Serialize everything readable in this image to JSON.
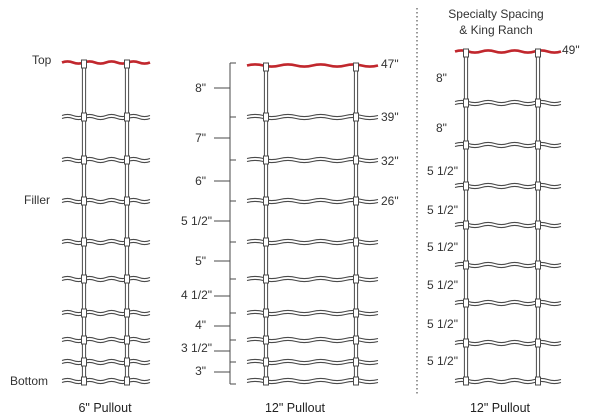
{
  "colors": {
    "wire": "#4a4a4a",
    "accent": "#c1272d",
    "divider": "#555555",
    "text": "#333333"
  },
  "left_panel": {
    "top_label": "Top",
    "filler_label": "Filler",
    "bottom_label": "Bottom",
    "caption": "6\" Pullout"
  },
  "middle_panel": {
    "spacing_labels": [
      "8\"",
      "7\"",
      "6\"",
      "5 1/2\"",
      "5\"",
      "4 1/2\"",
      "4\"",
      "3 1/2\"",
      "3\""
    ],
    "height_labels": [
      "47\"",
      "39\"",
      "32\"",
      "26\""
    ],
    "caption": "12\" Pullout"
  },
  "right_panel": {
    "title_line1": "Specialty Spacing",
    "title_line2": "& King Ranch",
    "height_label": "49\"",
    "spacing_labels": [
      "8\"",
      "8\"",
      "5 1/2\"",
      "5 1/2\"",
      "5 1/2\"",
      "5 1/2\"",
      "5 1/2\"",
      "5 1/2\""
    ],
    "caption": "12\" Pullout"
  }
}
